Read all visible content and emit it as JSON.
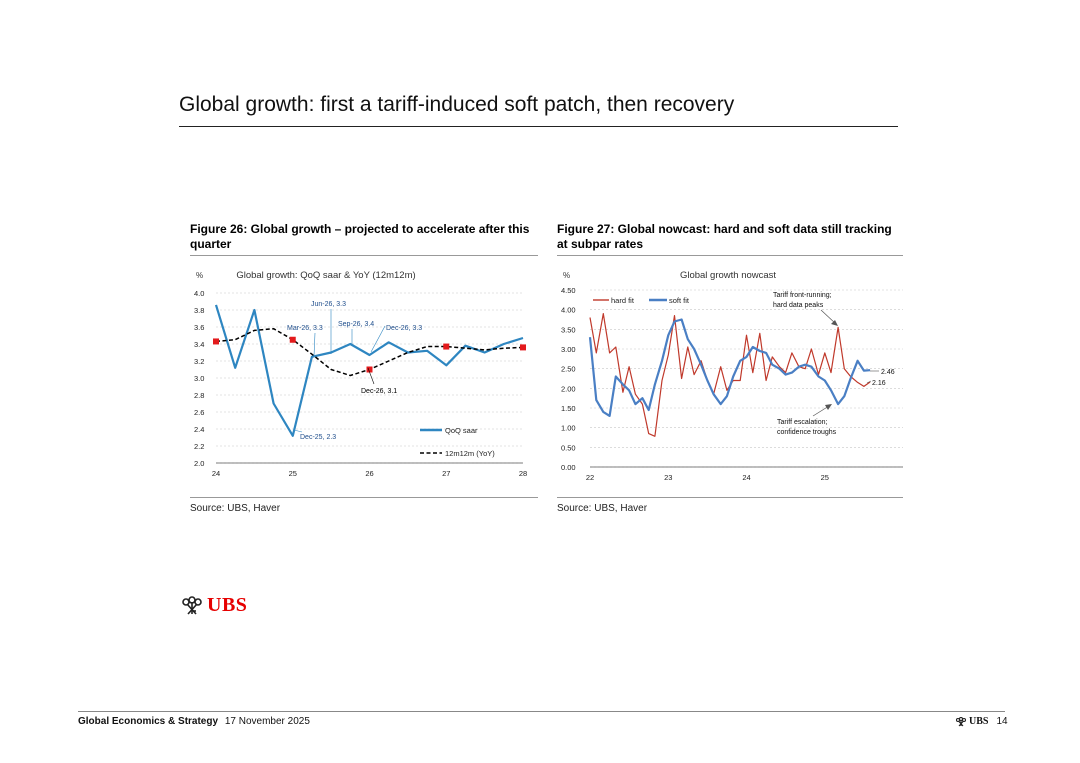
{
  "page": {
    "title": "Global growth: first a tariff-induced soft patch, then recovery"
  },
  "footer": {
    "section": "Global Economics & Strategy",
    "date": "17 November 2025",
    "brand": "UBS",
    "page_number": "14"
  },
  "logo": {
    "word": "UBS",
    "color": "#e60000"
  },
  "figures": [
    {
      "title": "Figure 26: Global growth – projected to accelerate after this quarter",
      "source": "Source: UBS, Haver"
    },
    {
      "title": "Figure 27: Global nowcast: hard and soft data still tracking at subpar rates",
      "source": "Source: UBS, Haver"
    }
  ],
  "chart_data": [
    {
      "type": "line",
      "title": "Global growth: QoQ saar & YoY (12m12m)",
      "ylabel": "%",
      "xlabel": "",
      "ylim": [
        2.0,
        4.0
      ],
      "yticks": [
        "2.0",
        "2.2",
        "2.4",
        "2.6",
        "2.8",
        "3.0",
        "3.2",
        "3.4",
        "3.6",
        "3.8",
        "4.0"
      ],
      "xlim": [
        24,
        28
      ],
      "xticks": [
        "24",
        "25",
        "26",
        "27",
        "28"
      ],
      "grid": true,
      "legend": "bottom-right",
      "series": [
        {
          "name": "QoQ saar",
          "style": "solid",
          "color": "#2e86c1",
          "x": [
            24.0,
            24.25,
            24.5,
            24.75,
            25.0,
            25.25,
            25.5,
            25.75,
            26.0,
            26.25,
            26.5,
            26.75,
            27.0,
            27.25,
            27.5,
            27.75,
            28.0
          ],
          "y": [
            3.86,
            3.12,
            3.8,
            2.7,
            2.32,
            3.25,
            3.3,
            3.4,
            3.27,
            3.42,
            3.3,
            3.32,
            3.15,
            3.38,
            3.3,
            3.4,
            3.47
          ]
        },
        {
          "name": "12m12m (YoY)",
          "style": "dashed",
          "color": "#000000",
          "x": [
            24.0,
            24.25,
            24.5,
            24.75,
            25.0,
            25.25,
            25.5,
            25.75,
            26.0,
            26.25,
            26.5,
            26.75,
            27.0,
            27.25,
            27.5,
            27.75,
            28.0
          ],
          "y": [
            3.43,
            3.45,
            3.56,
            3.58,
            3.45,
            3.28,
            3.1,
            3.03,
            3.1,
            3.2,
            3.3,
            3.37,
            3.37,
            3.35,
            3.33,
            3.35,
            3.36
          ]
        }
      ],
      "markers": {
        "color": "#e31a1c",
        "x": [
          24.0,
          25.0,
          26.0,
          27.0,
          28.0
        ],
        "y": [
          3.43,
          3.45,
          3.1,
          3.37,
          3.36
        ]
      },
      "annotations": [
        {
          "text": "Jun-26, 3.3",
          "x": 25.5,
          "y": 3.3
        },
        {
          "text": "Mar-26, 3.3",
          "x": 25.25,
          "y": 3.25
        },
        {
          "text": "Sep-26, 3.4",
          "x": 25.75,
          "y": 3.4
        },
        {
          "text": "Dec-26, 3.3",
          "x": 26.0,
          "y": 3.27
        },
        {
          "text": "Dec-26, 3.1",
          "x": 26.0,
          "y": 3.1
        },
        {
          "text": "Dec-25, 2.3",
          "x": 25.0,
          "y": 2.32
        }
      ]
    },
    {
      "type": "line",
      "title": "Global growth nowcast",
      "ylabel": "%",
      "xlabel": "",
      "ylim": [
        0.0,
        4.5
      ],
      "yticks": [
        "0.00",
        "0.50",
        "1.00",
        "1.50",
        "2.00",
        "2.50",
        "3.00",
        "3.50",
        "4.00",
        "4.50"
      ],
      "xlim": [
        22,
        26
      ],
      "xticks": [
        "22",
        "23",
        "24",
        "25"
      ],
      "grid": true,
      "legend": "top-left",
      "series": [
        {
          "name": "hard fit",
          "color": "#c0392b",
          "x": [
            22.0,
            22.08,
            22.17,
            22.25,
            22.33,
            22.42,
            22.5,
            22.58,
            22.67,
            22.75,
            22.83,
            22.92,
            23.0,
            23.08,
            23.17,
            23.25,
            23.33,
            23.42,
            23.5,
            23.58,
            23.67,
            23.75,
            23.83,
            23.92,
            24.0,
            24.08,
            24.17,
            24.25,
            24.33,
            24.42,
            24.5,
            24.58,
            24.67,
            24.75,
            24.83,
            24.92,
            25.0,
            25.08,
            25.17,
            25.25,
            25.33,
            25.42,
            25.5,
            25.58
          ],
          "y": [
            3.8,
            2.9,
            3.9,
            2.9,
            3.05,
            1.9,
            2.55,
            1.85,
            1.6,
            0.85,
            0.78,
            2.2,
            2.85,
            3.85,
            2.25,
            3.05,
            2.35,
            2.7,
            2.2,
            1.85,
            2.55,
            1.95,
            2.2,
            2.2,
            3.35,
            2.4,
            3.4,
            2.2,
            2.8,
            2.55,
            2.4,
            2.9,
            2.55,
            2.5,
            3.0,
            2.35,
            2.9,
            2.4,
            3.55,
            2.5,
            2.3,
            2.15,
            2.05,
            2.16
          ]
        },
        {
          "name": "soft fit",
          "color": "#4a7fc4",
          "x": [
            22.0,
            22.08,
            22.17,
            22.25,
            22.33,
            22.42,
            22.5,
            22.58,
            22.67,
            22.75,
            22.83,
            22.92,
            23.0,
            23.08,
            23.17,
            23.25,
            23.33,
            23.42,
            23.5,
            23.58,
            23.67,
            23.75,
            23.83,
            23.92,
            24.0,
            24.08,
            24.17,
            24.25,
            24.33,
            24.42,
            24.5,
            24.58,
            24.67,
            24.75,
            24.83,
            24.92,
            25.0,
            25.08,
            25.17,
            25.25,
            25.33,
            25.42,
            25.5,
            25.58
          ],
          "y": [
            3.3,
            1.7,
            1.4,
            1.3,
            2.3,
            2.1,
            1.95,
            1.6,
            1.75,
            1.45,
            2.1,
            2.7,
            3.35,
            3.7,
            3.75,
            3.25,
            3.0,
            2.6,
            2.2,
            1.85,
            1.6,
            1.8,
            2.3,
            2.7,
            2.8,
            3.05,
            2.95,
            2.9,
            2.6,
            2.5,
            2.35,
            2.4,
            2.55,
            2.6,
            2.55,
            2.3,
            2.2,
            1.95,
            1.6,
            1.8,
            2.25,
            2.7,
            2.45,
            2.46
          ]
        }
      ],
      "annotations": [
        {
          "text": "Tariff front-running; hard data peaks"
        },
        {
          "text": "Tariff escalation; confidence troughs"
        },
        {
          "text": "2.46"
        },
        {
          "text": "2.16"
        }
      ]
    }
  ]
}
